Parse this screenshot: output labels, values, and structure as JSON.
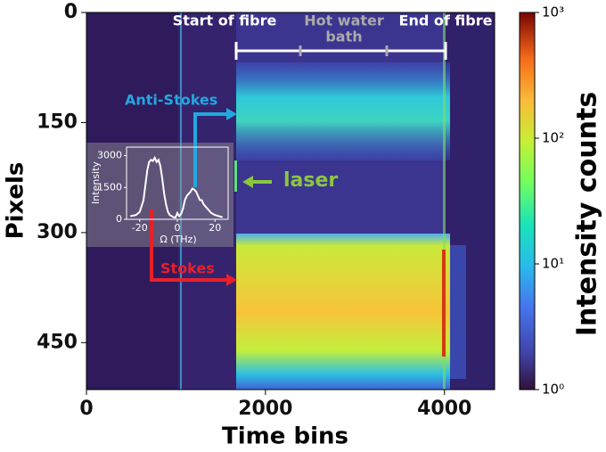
{
  "chart_data": [
    {
      "type": "heatmap",
      "x_label": "Time bins",
      "y_label": "Pixels",
      "xlim": [
        0,
        4560
      ],
      "xticks": [
        0,
        2000,
        4000
      ],
      "ylim": [
        514,
        0
      ],
      "yticks": [
        0,
        150,
        300,
        450
      ],
      "colorbar": {
        "label": "Intensity counts",
        "log": true,
        "clim": [
          1,
          1000
        ],
        "ticks": [
          {
            "value": 1,
            "label": "10⁰"
          },
          {
            "value": 10,
            "label": "10¹"
          },
          {
            "value": 100,
            "label": "10²"
          },
          {
            "value": 1000,
            "label": "10³"
          }
        ]
      },
      "annotations": {
        "start": "Start of fibre",
        "bath": [
          "Hot water",
          "bath"
        ],
        "end": "End of fibre",
        "anti_stokes": "Anti-Stokes",
        "laser": "laser",
        "stokes": "Stokes"
      }
    },
    {
      "type": "line",
      "x_label": "Ω (THz)",
      "y_label": "Intensity",
      "xlim": [
        -27,
        27
      ],
      "xticks": [
        -20,
        0,
        20
      ],
      "ylim": [
        0,
        3400
      ],
      "yticks": [
        0,
        1500,
        3000
      ],
      "color": "#ffffff",
      "x": [
        -25,
        -22,
        -20,
        -18,
        -16,
        -15,
        -14,
        -13,
        -12,
        -11,
        -10,
        -9,
        -8,
        -7,
        -6,
        -5,
        -4,
        -3,
        -2,
        -1,
        0,
        1,
        2,
        3,
        4,
        5,
        6,
        7,
        8,
        9,
        10,
        11,
        12,
        13,
        14,
        15,
        16,
        18,
        20,
        22,
        24
      ],
      "values": [
        150,
        200,
        350,
        900,
        2300,
        2700,
        2800,
        2750,
        2900,
        2700,
        2800,
        2500,
        1900,
        1200,
        700,
        350,
        200,
        150,
        100,
        80,
        300,
        150,
        250,
        500,
        900,
        1100,
        1200,
        1300,
        1450,
        1400,
        1300,
        1100,
        900,
        900,
        700,
        600,
        500,
        300,
        200,
        150,
        100
      ]
    }
  ]
}
